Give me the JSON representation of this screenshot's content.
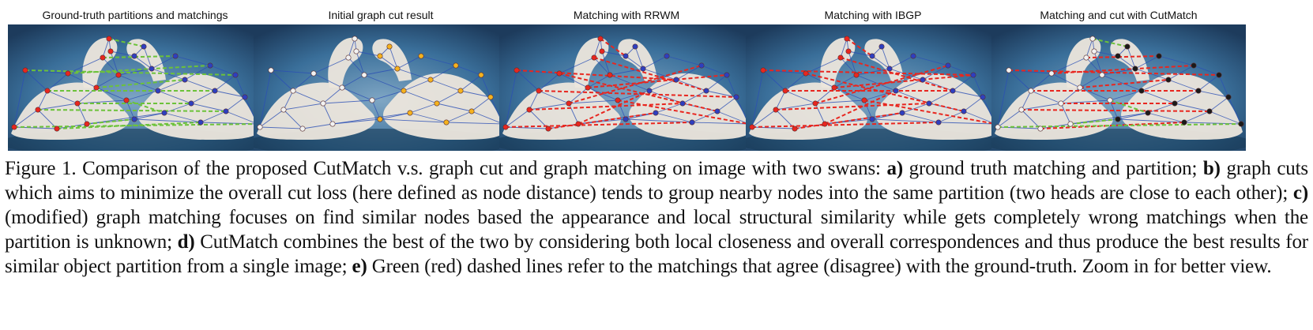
{
  "panels": [
    {
      "title": "Ground-truth partitions and matchings",
      "mode": "gt"
    },
    {
      "title": "Initial graph cut result",
      "mode": "cut"
    },
    {
      "title": "Matching with RRWM",
      "mode": "rrwm"
    },
    {
      "title": "Matching with IBGP",
      "mode": "ibgp"
    },
    {
      "title": "Matching and cut with CutMatch",
      "mode": "cutmatch"
    }
  ],
  "colors": {
    "sky": "#3a6f9a",
    "swan": "#ece6dc",
    "edge": "#2b4fb5",
    "agree": "#6cc23a",
    "disagree": "#e8261f",
    "node_red": "#e8261f",
    "node_blue": "#2e3fc0",
    "node_yellow": "#f5b21e",
    "node_white": "#f2f2f2",
    "node_black": "#1a1a1a"
  },
  "caption": {
    "part1": "Figure 1. Comparison of the proposed CutMatch v.s. graph cut and graph matching on image with two swans: ",
    "a_label": "a)",
    "a_text": " ground truth matching and partition; ",
    "b_label": "b)",
    "b_text": " graph cuts which aims to minimize the overall cut loss (here defined as node distance) tends to group nearby nodes into the same partition (two heads are close to each other); ",
    "c_label": "c)",
    "c_text": " (modified) graph matching focuses on find similar nodes based the appearance and local structural similarity while gets completely wrong matchings when the partition is unknown; ",
    "d_label": "d)",
    "d_text": " CutMatch combines the best of the two by considering both local closeness and overall correspondences and thus produce the best results for similar object partition from a single image; ",
    "e_label": "e)",
    "e_text": " Green (red) dashed lines refer to the matchings that agree (disagree) with the ground-truth. Zoom in for better view."
  }
}
